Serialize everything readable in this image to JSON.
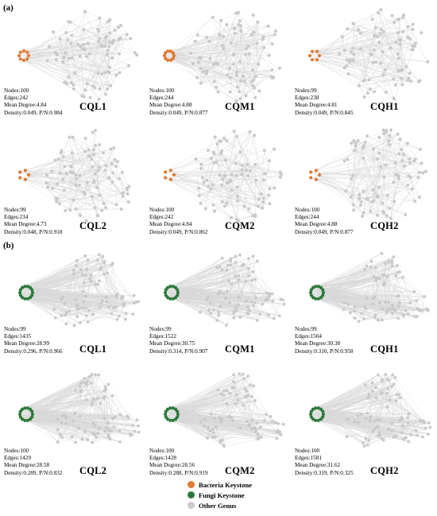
{
  "section_a": "(a)",
  "section_b": "(b)",
  "colors": {
    "bacteria": "#e07a36",
    "fungi": "#2c7a3b",
    "other": "#c9c9c9",
    "edge": "#d8d8d8"
  },
  "panels_a": [
    {
      "title": "CQL1",
      "nodes": "Nodes:100",
      "edges": "Edges:242",
      "mean_degree": "Mean Degree:4.84",
      "density": "Density:0.049, P/N:0.984",
      "keystone_count": 8
    },
    {
      "title": "CQM1",
      "nodes": "Nodes:100",
      "edges": "Edges:244",
      "mean_degree": "Mean Degree:4.88",
      "density": "Density:0.049, P/N:0.877",
      "keystone_count": 10
    },
    {
      "title": "CQH1",
      "nodes": "Nodes:99",
      "edges": "Edges:238",
      "mean_degree": "Mean Degree:4.81",
      "density": "Density:0.049, P/N:0.845",
      "keystone_count": 6
    },
    {
      "title": "CQL2",
      "nodes": "Nodes:99",
      "edges": "Edges:234",
      "mean_degree": "Mean Degree:4.73",
      "density": "Density:0.048, P/N:0.918",
      "keystone_count": 5
    },
    {
      "title": "CQM2",
      "nodes": "Nodes:100",
      "edges": "Edges:242",
      "mean_degree": "Mean Degree:4.84",
      "density": "Density:0.049, P/N:0.862",
      "keystone_count": 5
    },
    {
      "title": "CQH2",
      "nodes": "Nodes:100",
      "edges": "Edges:244",
      "mean_degree": "Mean Degree:4.88",
      "density": "Density:0.049, P/N:0.877",
      "keystone_count": 5
    }
  ],
  "panels_b": [
    {
      "title": "CQL1",
      "nodes": "Nodes:99",
      "edges": "Edges:1435",
      "mean_degree": "Mean Degree:28.99",
      "density": "Density:0.296, P/N:0.966",
      "keystone_count": 14
    },
    {
      "title": "CQM1",
      "nodes": "Nodes:99",
      "edges": "Edges:1522",
      "mean_degree": "Mean Degree:30.75",
      "density": "Density:0.314, P/N:0.907",
      "keystone_count": 14
    },
    {
      "title": "CQH1",
      "nodes": "Nodes:99",
      "edges": "Edges:1504",
      "mean_degree": "Mean Degree:30.38",
      "density": "Density:0.310, P/N:0.958",
      "keystone_count": 14
    },
    {
      "title": "CQL2",
      "nodes": "Nodes:100",
      "edges": "Edges:1429",
      "mean_degree": "Mean Degree:28.58",
      "density": "Density:0.289, P/N:0.832",
      "keystone_count": 14
    },
    {
      "title": "CQM2",
      "nodes": "Nodes:100",
      "edges": "Edges:1428",
      "mean_degree": "Mean Degree:28.56",
      "density": "Density:0.288, P/N:0.919",
      "keystone_count": 14
    },
    {
      "title": "CQH2",
      "nodes": "Nodes:100",
      "edges": "Edges:1581",
      "mean_degree": "Mean Degree:31.62",
      "density": "Density:0.319, P/N:0.325",
      "keystone_count": 14
    }
  ],
  "legend": [
    {
      "label": "Bacteria Keystone",
      "color": "#e07a36"
    },
    {
      "label": "Fungi Keystone",
      "color": "#2c7a3b"
    },
    {
      "label": "Other Genus",
      "color": "#c9c9c9"
    }
  ]
}
